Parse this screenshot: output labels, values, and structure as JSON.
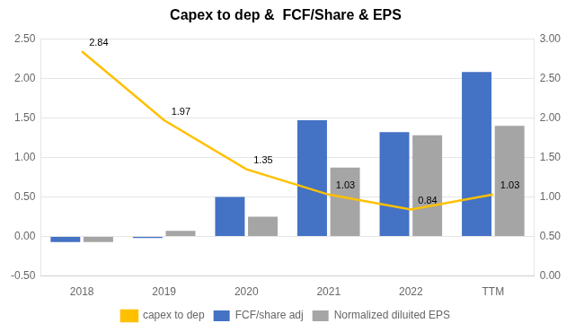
{
  "chart_data": {
    "type": "bar",
    "title": "Capex to dep &  FCF/Share & EPS",
    "categories": [
      "2018",
      "2019",
      "2020",
      "2021",
      "2022",
      "TTM"
    ],
    "series": [
      {
        "name": "FCF/share adj",
        "color": "#4472C4",
        "values": [
          -0.07,
          -0.02,
          0.5,
          1.47,
          1.32,
          2.08
        ]
      },
      {
        "name": "Normalized diluited EPS",
        "color": "#A5A5A5",
        "values": [
          -0.07,
          0.07,
          0.25,
          0.87,
          1.28,
          1.4
        ]
      },
      {
        "name": "capex to dep",
        "type": "line",
        "axis": "y2",
        "color": "#FFC000",
        "values": [
          2.84,
          1.97,
          1.35,
          1.03,
          0.84,
          1.03
        ],
        "data_labels": true
      }
    ],
    "ylim": [
      -0.5,
      2.5
    ],
    "yticks": [
      {
        "value": -0.5,
        "label": "-0.50"
      },
      {
        "value": 0,
        "label": "0.00"
      },
      {
        "value": 0.5,
        "label": "0.50"
      },
      {
        "value": 1,
        "label": "1.00"
      },
      {
        "value": 1.5,
        "label": "1.50"
      },
      {
        "value": 2,
        "label": "2.00"
      },
      {
        "value": 2.5,
        "label": "2.50"
      }
    ],
    "y2lim": [
      0,
      3
    ],
    "y2ticks": [
      {
        "value": 0,
        "label": "0.00"
      },
      {
        "value": 0.5,
        "label": "0.50"
      },
      {
        "value": 1,
        "label": "1.00"
      },
      {
        "value": 1.5,
        "label": "1.50"
      },
      {
        "value": 2,
        "label": "2.00"
      },
      {
        "value": 2.5,
        "label": "2.50"
      },
      {
        "value": 3,
        "label": "3.00"
      }
    ],
    "grid": true,
    "legend": "bottom"
  }
}
